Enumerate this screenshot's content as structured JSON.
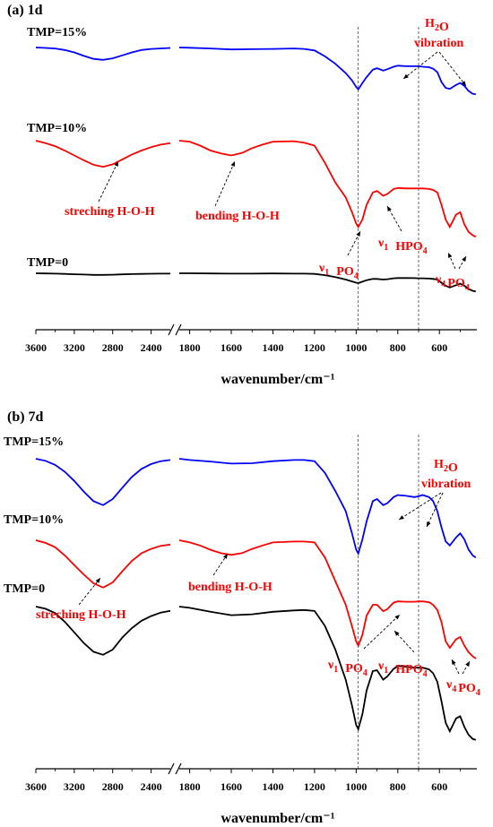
{
  "chart_data": [
    {
      "type": "line",
      "title": "(a) 1d",
      "xlabel": "wavenumber/cm⁻¹",
      "ylabel": "",
      "x_break": [
        2200,
        1850
      ],
      "xlim": [
        3600,
        420
      ],
      "x_ticks": [
        3600,
        3200,
        2800,
        2400,
        1800,
        1600,
        1400,
        1200,
        1000,
        800,
        600
      ],
      "vlines": [
        990,
        700
      ],
      "series": [
        {
          "name": "TMP=15%",
          "color": "#0000ff",
          "x": [
            3600,
            3500,
            3400,
            3300,
            3200,
            3100,
            3000,
            2900,
            2800,
            2700,
            2600,
            2500,
            2400,
            2300,
            2200,
            1850,
            1800,
            1700,
            1600,
            1500,
            1400,
            1300,
            1250,
            1200,
            1150,
            1100,
            1050,
            1020,
            1000,
            990,
            970,
            950,
            920,
            900,
            870,
            850,
            820,
            800,
            760,
            720,
            700,
            680,
            650,
            630,
            610,
            590,
            570,
            550,
            520,
            500,
            480,
            460,
            440,
            425
          ],
          "y": [
            0.0,
            -0.01,
            -0.02,
            -0.05,
            -0.1,
            -0.17,
            -0.23,
            -0.25,
            -0.22,
            -0.16,
            -0.1,
            -0.05,
            -0.03,
            -0.02,
            -0.01,
            0.0,
            -0.005,
            -0.02,
            -0.04,
            -0.035,
            -0.03,
            -0.02,
            -0.03,
            -0.06,
            -0.18,
            -0.33,
            -0.52,
            -0.67,
            -0.8,
            -0.85,
            -0.72,
            -0.6,
            -0.45,
            -0.42,
            -0.47,
            -0.44,
            -0.39,
            -0.37,
            -0.38,
            -0.38,
            -0.38,
            -0.39,
            -0.4,
            -0.43,
            -0.5,
            -0.7,
            -0.82,
            -0.84,
            -0.76,
            -0.72,
            -0.78,
            -0.88,
            -0.94,
            -0.95
          ]
        },
        {
          "name": "TMP=10%",
          "color": "#ff0000",
          "x": [
            3600,
            3500,
            3400,
            3300,
            3200,
            3100,
            3000,
            2900,
            2800,
            2700,
            2600,
            2500,
            2400,
            2300,
            2200,
            1850,
            1800,
            1750,
            1700,
            1650,
            1600,
            1550,
            1500,
            1450,
            1400,
            1300,
            1250,
            1200,
            1150,
            1100,
            1050,
            1020,
            1000,
            990,
            970,
            950,
            920,
            900,
            870,
            850,
            820,
            800,
            760,
            720,
            700,
            680,
            650,
            630,
            610,
            590,
            570,
            550,
            520,
            500,
            480,
            460,
            440,
            425
          ],
          "y": [
            0.0,
            -0.05,
            -0.11,
            -0.2,
            -0.3,
            -0.4,
            -0.49,
            -0.53,
            -0.48,
            -0.38,
            -0.28,
            -0.2,
            -0.13,
            -0.08,
            -0.05,
            0.0,
            -0.02,
            -0.1,
            -0.2,
            -0.26,
            -0.3,
            -0.25,
            -0.15,
            -0.08,
            -0.02,
            -0.01,
            -0.04,
            -0.1,
            -0.45,
            -0.85,
            -1.15,
            -1.45,
            -1.68,
            -1.75,
            -1.6,
            -1.3,
            -1.05,
            -1.02,
            -1.12,
            -1.08,
            -0.98,
            -0.96,
            -0.97,
            -0.97,
            -0.97,
            -0.97,
            -0.98,
            -1.0,
            -1.05,
            -1.3,
            -1.6,
            -1.75,
            -1.5,
            -1.45,
            -1.7,
            -1.85,
            -1.92,
            -1.95
          ]
        },
        {
          "name": "TMP=0",
          "color": "#000000",
          "x": [
            3600,
            3500,
            3400,
            3300,
            3200,
            3100,
            3000,
            2900,
            2800,
            2700,
            2600,
            2500,
            2400,
            2300,
            2200,
            1850,
            1800,
            1700,
            1600,
            1500,
            1400,
            1300,
            1250,
            1200,
            1150,
            1100,
            1050,
            1020,
            1000,
            990,
            970,
            950,
            920,
            900,
            870,
            850,
            820,
            800,
            760,
            720,
            700,
            680,
            650,
            630,
            610,
            590,
            570,
            550,
            520,
            500,
            480,
            460,
            440,
            425
          ],
          "y": [
            0.0,
            -0.005,
            -0.01,
            -0.02,
            -0.03,
            -0.04,
            -0.05,
            -0.05,
            -0.045,
            -0.035,
            -0.025,
            -0.02,
            -0.015,
            -0.01,
            -0.01,
            0.0,
            0.0,
            -0.005,
            -0.01,
            -0.01,
            -0.005,
            -0.01,
            -0.01,
            -0.02,
            -0.06,
            -0.12,
            -0.2,
            -0.26,
            -0.3,
            -0.31,
            -0.27,
            -0.22,
            -0.18,
            -0.18,
            -0.2,
            -0.19,
            -0.16,
            -0.15,
            -0.15,
            -0.155,
            -0.16,
            -0.16,
            -0.17,
            -0.18,
            -0.2,
            -0.3,
            -0.4,
            -0.45,
            -0.38,
            -0.33,
            -0.4,
            -0.5,
            -0.56,
            -0.58
          ]
        }
      ],
      "series_labels": [
        "TMP=15%",
        "TMP=10%",
        "TMP=0"
      ],
      "annotations": {
        "h2o": "H",
        "h2o_sub": "2",
        "h2o_tail": "O",
        "vibration": "vibration",
        "streching": "streching H-O-H",
        "bending": "bending H-O-H",
        "v1_po4": "ν",
        "sub_1": "1",
        "po": "PO",
        "sub_4": "4",
        "hpo": "HPO",
        "v4_po4": "ν"
      },
      "grid": false,
      "legend": "none"
    },
    {
      "type": "line",
      "title": "(b) 7d",
      "xlabel": "wavenumber/cm⁻¹",
      "ylabel": "",
      "x_break": [
        2200,
        1850
      ],
      "xlim": [
        3600,
        420
      ],
      "x_ticks": [
        3600,
        3200,
        2800,
        2400,
        1800,
        1600,
        1400,
        1200,
        1000,
        800,
        600
      ],
      "vlines": [
        990,
        700
      ],
      "series": [
        {
          "name": "TMP=15%",
          "color": "#0000ff",
          "x": [
            3600,
            3500,
            3400,
            3300,
            3200,
            3100,
            3000,
            2900,
            2800,
            2700,
            2600,
            2500,
            2400,
            2300,
            2200,
            1850,
            1800,
            1700,
            1600,
            1500,
            1400,
            1300,
            1250,
            1200,
            1150,
            1100,
            1050,
            1020,
            1000,
            990,
            970,
            950,
            920,
            900,
            870,
            850,
            820,
            800,
            760,
            720,
            700,
            680,
            650,
            630,
            610,
            590,
            570,
            550,
            520,
            500,
            480,
            460,
            440,
            425
          ],
          "y": [
            0.0,
            -0.05,
            -0.15,
            -0.32,
            -0.55,
            -0.82,
            -1.05,
            -1.15,
            -1.0,
            -0.72,
            -0.45,
            -0.25,
            -0.13,
            -0.06,
            -0.03,
            0.0,
            -0.03,
            -0.07,
            -0.12,
            -0.11,
            -0.06,
            -0.03,
            -0.03,
            -0.06,
            -0.35,
            -0.8,
            -1.3,
            -1.85,
            -2.25,
            -2.35,
            -2.0,
            -1.55,
            -1.05,
            -1.0,
            -1.15,
            -1.1,
            -0.95,
            -0.9,
            -0.92,
            -0.95,
            -0.93,
            -0.9,
            -0.95,
            -1.05,
            -1.3,
            -1.7,
            -2.05,
            -2.15,
            -1.95,
            -1.85,
            -2.0,
            -2.25,
            -2.4,
            -2.45
          ]
        },
        {
          "name": "TMP=10%",
          "color": "#ff0000",
          "x": [
            3600,
            3500,
            3400,
            3300,
            3200,
            3100,
            3000,
            2900,
            2800,
            2700,
            2600,
            2500,
            2400,
            2300,
            2200,
            1850,
            1800,
            1750,
            1700,
            1650,
            1600,
            1550,
            1500,
            1450,
            1400,
            1300,
            1250,
            1200,
            1150,
            1100,
            1050,
            1020,
            1000,
            990,
            970,
            950,
            920,
            900,
            870,
            850,
            820,
            800,
            760,
            720,
            700,
            680,
            650,
            630,
            610,
            590,
            570,
            550,
            520,
            500,
            480,
            460,
            440,
            425
          ],
          "y": [
            0.0,
            -0.06,
            -0.16,
            -0.35,
            -0.58,
            -0.8,
            -1.0,
            -1.1,
            -0.98,
            -0.72,
            -0.48,
            -0.3,
            -0.2,
            -0.13,
            -0.1,
            0.0,
            -0.05,
            -0.12,
            -0.22,
            -0.3,
            -0.34,
            -0.3,
            -0.2,
            -0.12,
            -0.05,
            -0.03,
            -0.03,
            -0.05,
            -0.4,
            -0.95,
            -1.5,
            -2.0,
            -2.35,
            -2.45,
            -2.2,
            -1.75,
            -1.5,
            -1.5,
            -1.65,
            -1.6,
            -1.45,
            -1.42,
            -1.43,
            -1.43,
            -1.42,
            -1.42,
            -1.44,
            -1.5,
            -1.62,
            -1.9,
            -2.35,
            -2.5,
            -2.3,
            -2.25,
            -2.45,
            -2.6,
            -2.7,
            -2.75
          ]
        },
        {
          "name": "TMP=0",
          "color": "#000000",
          "x": [
            3600,
            3500,
            3400,
            3300,
            3200,
            3100,
            3000,
            2900,
            2800,
            2700,
            2600,
            2500,
            2400,
            2300,
            2200,
            1850,
            1800,
            1700,
            1600,
            1500,
            1400,
            1300,
            1250,
            1200,
            1150,
            1100,
            1050,
            1020,
            1000,
            990,
            970,
            950,
            920,
            900,
            870,
            850,
            820,
            800,
            760,
            720,
            700,
            680,
            650,
            630,
            610,
            590,
            570,
            550,
            520,
            500,
            480,
            460,
            440,
            425
          ],
          "y": [
            0.0,
            -0.05,
            -0.15,
            -0.35,
            -0.6,
            -0.85,
            -1.05,
            -1.12,
            -1.0,
            -0.72,
            -0.5,
            -0.33,
            -0.22,
            -0.14,
            -0.1,
            0.0,
            -0.03,
            -0.12,
            -0.2,
            -0.18,
            -0.12,
            -0.09,
            -0.08,
            -0.1,
            -0.45,
            -1.0,
            -1.7,
            -2.3,
            -2.75,
            -2.85,
            -2.5,
            -1.95,
            -1.5,
            -1.48,
            -1.7,
            -1.62,
            -1.45,
            -1.38,
            -1.4,
            -1.42,
            -1.42,
            -1.42,
            -1.46,
            -1.55,
            -1.75,
            -2.2,
            -2.7,
            -2.9,
            -2.6,
            -2.55,
            -2.8,
            -2.98,
            -3.08,
            -3.1
          ]
        }
      ],
      "series_labels": [
        "TMP=15%",
        "TMP=10%",
        "TMP=0"
      ],
      "annotations": {
        "h2o": "H",
        "h2o_sub": "2",
        "h2o_tail": "O",
        "vibration": "vibration",
        "streching": "streching H-O-H",
        "bending": "bending H-O-H",
        "v1_po4": "ν",
        "sub_1": "1",
        "po": "PO",
        "sub_4": "4",
        "hpo": "HPO",
        "v4_po4": "ν"
      },
      "grid": false,
      "legend": "none"
    }
  ]
}
